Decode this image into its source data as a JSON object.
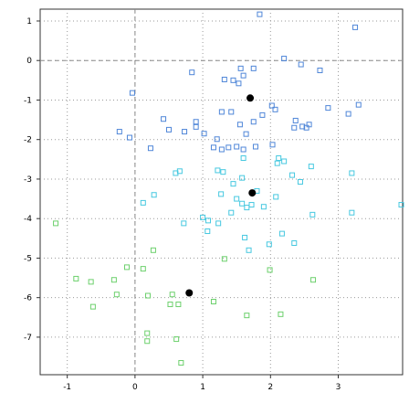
{
  "chart_data": {
    "type": "scatter",
    "xlim": [
      -1.4,
      3.95
    ],
    "ylim": [
      -7.95,
      1.3
    ],
    "x_ticks": [
      -1,
      0,
      1,
      2,
      3
    ],
    "y_ticks": [
      1,
      0,
      -1,
      -2,
      -3,
      -4,
      -5,
      -6,
      -7
    ],
    "x_tick_labels": [
      "-1",
      "0",
      "1",
      "2",
      "3"
    ],
    "y_tick_labels": [
      "1",
      "0",
      "-1",
      "-2",
      "-3",
      "-4",
      "-5",
      "-6",
      "-7"
    ],
    "grid": "dotted",
    "reference_lines": {
      "x": 0,
      "y": 0
    },
    "series": [
      {
        "color": "#4f86d8",
        "marker": "open-square",
        "points": [
          [
            1.84,
            1.17
          ],
          [
            3.25,
            0.84
          ],
          [
            2.2,
            0.05
          ],
          [
            2.45,
            -0.1
          ],
          [
            2.73,
            -0.25
          ],
          [
            1.56,
            -0.2
          ],
          [
            1.75,
            -0.2
          ],
          [
            0.84,
            -0.3
          ],
          [
            1.32,
            -0.48
          ],
          [
            1.45,
            -0.5
          ],
          [
            1.53,
            -0.58
          ],
          [
            1.6,
            -0.38
          ],
          [
            -0.04,
            -0.82
          ],
          [
            2.02,
            -1.14
          ],
          [
            3.3,
            -1.12
          ],
          [
            2.85,
            -1.2
          ],
          [
            3.15,
            -1.35
          ],
          [
            1.28,
            -1.3
          ],
          [
            1.42,
            -1.3
          ],
          [
            1.55,
            -1.62
          ],
          [
            1.75,
            -1.55
          ],
          [
            2.07,
            -1.24
          ],
          [
            1.88,
            -1.38
          ],
          [
            2.37,
            -1.52
          ],
          [
            2.35,
            -1.7
          ],
          [
            2.47,
            -1.67
          ],
          [
            2.53,
            -1.7
          ],
          [
            2.57,
            -1.62
          ],
          [
            0.42,
            -1.48
          ],
          [
            0.5,
            -1.75
          ],
          [
            0.73,
            -1.8
          ],
          [
            0.9,
            -1.68
          ],
          [
            0.9,
            -1.55
          ],
          [
            1.02,
            -1.85
          ],
          [
            1.64,
            -1.86
          ],
          [
            -0.23,
            -1.8
          ],
          [
            -0.08,
            -1.95
          ],
          [
            1.21,
            -1.99
          ],
          [
            1.16,
            -2.2
          ],
          [
            1.28,
            -2.25
          ],
          [
            1.38,
            -2.2
          ],
          [
            1.5,
            -2.18
          ],
          [
            1.6,
            -2.25
          ],
          [
            1.78,
            -2.18
          ],
          [
            2.03,
            -2.13
          ],
          [
            0.23,
            -2.22
          ]
        ]
      },
      {
        "color": "#46c8e0",
        "marker": "open-square",
        "points": [
          [
            1.6,
            -2.47
          ],
          [
            2.12,
            -2.47
          ],
          [
            2.2,
            -2.55
          ],
          [
            2.1,
            -2.6
          ],
          [
            2.6,
            -2.68
          ],
          [
            1.22,
            -2.78
          ],
          [
            1.3,
            -2.82
          ],
          [
            1.58,
            -2.97
          ],
          [
            0.6,
            -2.85
          ],
          [
            0.66,
            -2.8
          ],
          [
            2.32,
            -2.9
          ],
          [
            2.44,
            -3.07
          ],
          [
            3.2,
            -2.85
          ],
          [
            1.45,
            -3.12
          ],
          [
            1.27,
            -3.38
          ],
          [
            1.8,
            -3.3
          ],
          [
            0.28,
            -3.4
          ],
          [
            1.5,
            -3.5
          ],
          [
            1.58,
            -3.62
          ],
          [
            1.72,
            -3.65
          ],
          [
            1.65,
            -3.72
          ],
          [
            1.9,
            -3.7
          ],
          [
            2.08,
            -3.45
          ],
          [
            1.0,
            -3.97
          ],
          [
            1.08,
            -4.05
          ],
          [
            1.23,
            -4.12
          ],
          [
            0.72,
            -4.12
          ],
          [
            0.12,
            -3.6
          ],
          [
            1.42,
            -3.85
          ],
          [
            3.2,
            -3.85
          ],
          [
            3.93,
            -3.65
          ],
          [
            2.62,
            -3.9
          ],
          [
            2.17,
            -4.38
          ],
          [
            2.35,
            -4.62
          ],
          [
            1.98,
            -4.65
          ],
          [
            1.62,
            -4.48
          ],
          [
            1.68,
            -4.8
          ],
          [
            1.07,
            -4.32
          ]
        ]
      },
      {
        "color": "#6cd06c",
        "marker": "open-square",
        "points": [
          [
            -1.17,
            -4.12
          ],
          [
            0.27,
            -4.8
          ],
          [
            1.32,
            -5.02
          ],
          [
            -0.12,
            -5.23
          ],
          [
            0.12,
            -5.27
          ],
          [
            1.99,
            -5.3
          ],
          [
            -0.87,
            -5.52
          ],
          [
            -0.65,
            -5.6
          ],
          [
            -0.31,
            -5.55
          ],
          [
            2.63,
            -5.55
          ],
          [
            -0.27,
            -5.92
          ],
          [
            0.19,
            -5.95
          ],
          [
            0.55,
            -5.92
          ],
          [
            0.52,
            -6.17
          ],
          [
            0.64,
            -6.17
          ],
          [
            1.16,
            -6.1
          ],
          [
            -0.62,
            -6.23
          ],
          [
            1.65,
            -6.45
          ],
          [
            2.15,
            -6.42
          ],
          [
            0.18,
            -6.9
          ],
          [
            0.18,
            -7.1
          ],
          [
            0.61,
            -7.05
          ],
          [
            0.68,
            -7.65
          ]
        ]
      },
      {
        "color": "#000000",
        "marker": "filled-circle",
        "points": [
          [
            1.7,
            -0.95
          ],
          [
            1.73,
            -3.35
          ],
          [
            0.8,
            -5.88
          ]
        ]
      }
    ]
  }
}
